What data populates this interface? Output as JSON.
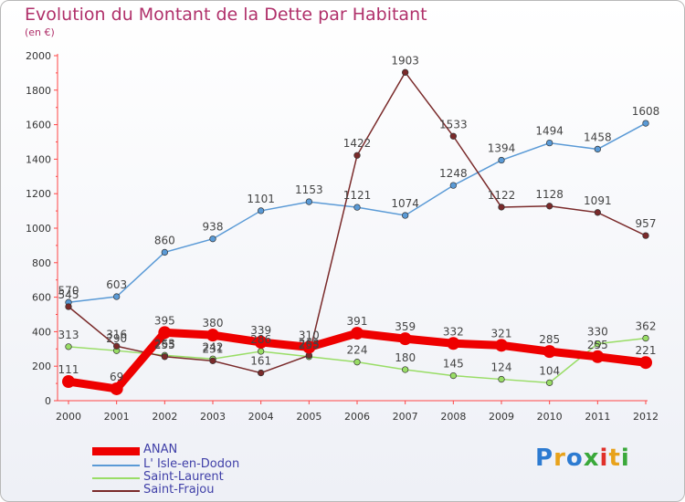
{
  "title": "Evolution du Montant de la Dette par Habitant",
  "subtitle": "(en €)",
  "brand": {
    "text": "Proxiti",
    "colors": [
      "#2d7bd1",
      "#e8a21b",
      "#2d7bd1",
      "#3aa83a",
      "#e0302a",
      "#e8a21b",
      "#3aa83a"
    ]
  },
  "chart_data": {
    "type": "line",
    "x": [
      "2000",
      "2001",
      "2002",
      "2003",
      "2004",
      "2005",
      "2006",
      "2007",
      "2008",
      "2009",
      "2010",
      "2011",
      "2012"
    ],
    "ylim": [
      0,
      2000
    ],
    "yticks": [
      "0",
      "200",
      "400",
      "600",
      "800",
      "1000",
      "1200",
      "1400",
      "1600",
      "1800",
      "2000"
    ],
    "grid": false,
    "legend": "bottom-left",
    "series": [
      {
        "name": "ANAN",
        "color": "#ee0000",
        "values": [
          111,
          69,
          395,
          380,
          339,
          310,
          391,
          359,
          332,
          321,
          285,
          255,
          221
        ],
        "labels": [
          "111",
          "69",
          "395",
          "380",
          "339",
          "310",
          "391",
          "359",
          "332",
          "321",
          "285",
          "255",
          "221"
        ]
      },
      {
        "name": "L' Isle-en-Dodon",
        "color": "#5a9ad6",
        "values": [
          570,
          603,
          860,
          938,
          1101,
          1153,
          1121,
          1074,
          1248,
          1394,
          1494,
          1458,
          1608
        ],
        "labels": [
          "570",
          "603",
          "860",
          "938",
          "1101",
          "1153",
          "1121",
          "1074",
          "1248",
          "1394",
          "1494",
          "1458",
          "1608"
        ]
      },
      {
        "name": "Saint-Laurent",
        "color": "#99dd66",
        "values": [
          313,
          290,
          263,
          242,
          286,
          255,
          224,
          180,
          145,
          124,
          104,
          330,
          362
        ],
        "labels": [
          "313",
          "290",
          "263",
          "242",
          "286",
          "255",
          "224",
          "180",
          "145",
          "124",
          "104",
          "330",
          "362"
        ]
      },
      {
        "name": "Saint-Frajou",
        "color": "#7a2a2a",
        "values": [
          545,
          316,
          255,
          231,
          161,
          263,
          1422,
          1903,
          1533,
          1122,
          1128,
          1091,
          957
        ],
        "labels": [
          "545",
          "316",
          "255",
          "231",
          "161",
          "263",
          "1422",
          "1903",
          "1533",
          "1122",
          "1128",
          "1091",
          "957"
        ]
      }
    ]
  }
}
